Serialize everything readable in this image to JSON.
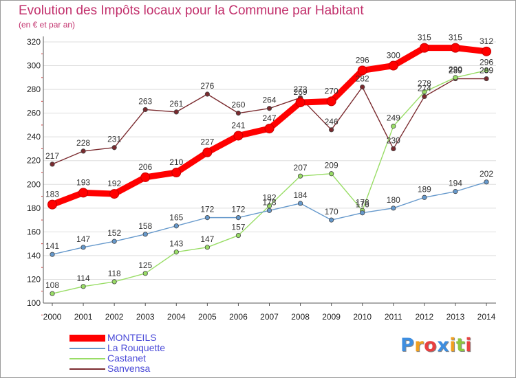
{
  "chart_data": {
    "type": "line",
    "title": "Evolution des Impôts locaux pour la Commune par Habitant",
    "subtitle": "(en € et par an)",
    "xlabel": "",
    "ylabel": "",
    "x": [
      2000,
      2001,
      2002,
      2003,
      2004,
      2005,
      2006,
      2007,
      2008,
      2009,
      2010,
      2011,
      2012,
      2013,
      2014
    ],
    "ylim": [
      100,
      320
    ],
    "yticks": [
      100,
      120,
      140,
      160,
      180,
      200,
      220,
      240,
      260,
      280,
      300,
      320
    ],
    "grid": "horizontal",
    "legend_position": "bottom-left",
    "series": [
      {
        "name": "Sanvensa",
        "color": "#7a2a2e",
        "values": [
          217,
          228,
          231,
          263,
          261,
          276,
          260,
          264,
          273,
          246,
          282,
          230,
          274,
          289,
          289
        ]
      },
      {
        "name": "Castanet",
        "color": "#99dd66",
        "values": [
          108,
          114,
          118,
          125,
          143,
          147,
          157,
          182,
          207,
          209,
          178,
          249,
          278,
          290,
          296
        ]
      },
      {
        "name": "La Rouquette",
        "color": "#6699cc",
        "values": [
          141,
          147,
          152,
          158,
          165,
          172,
          172,
          178,
          184,
          170,
          176,
          180,
          189,
          194,
          202
        ]
      },
      {
        "name": "MONTEILS",
        "color": "#ff0000",
        "values": [
          183,
          193,
          192,
          206,
          210,
          227,
          241,
          247,
          269,
          270,
          296,
          300,
          315,
          315,
          312
        ]
      }
    ]
  },
  "legend": [
    {
      "label": "MONTEILS",
      "color": "#ff0000"
    },
    {
      "label": "La Rouquette",
      "color": "#6699cc"
    },
    {
      "label": "Castanet",
      "color": "#99dd66"
    },
    {
      "label": "Sanvensa",
      "color": "#7a2a2e"
    }
  ],
  "brand": {
    "letters": [
      "P",
      "r",
      "o",
      "x",
      "i",
      "t",
      "i"
    ],
    "colors": [
      "#3e8ee0",
      "#f0a020",
      "#e84040",
      "#3e8ee0",
      "#f0a020",
      "#8cc640",
      "#e84040"
    ]
  }
}
